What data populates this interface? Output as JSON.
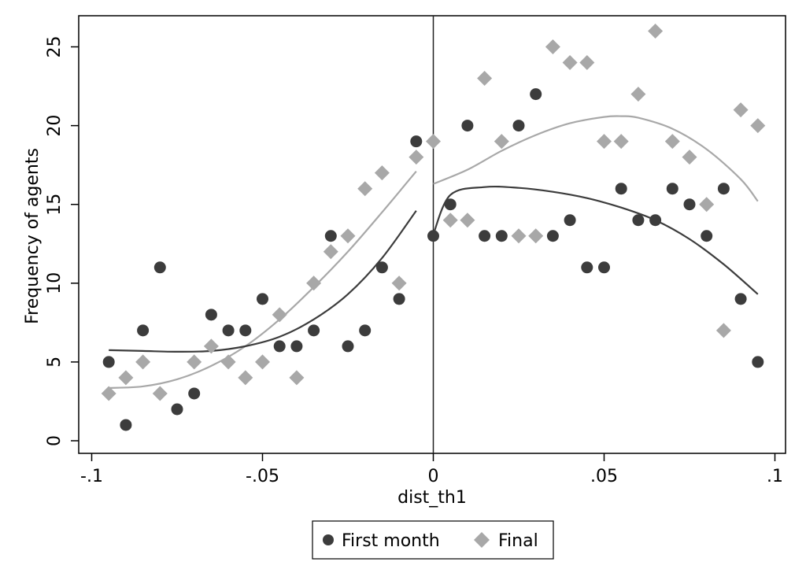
{
  "chart_data": {
    "type": "scatter",
    "title": "",
    "xlabel": "dist_th1",
    "ylabel": "Frequency of agents",
    "xlim": [
      -0.1,
      0.1
    ],
    "ylim": [
      0,
      26
    ],
    "xticks": [
      {
        "value": -0.1,
        "label": "-.1"
      },
      {
        "value": -0.05,
        "label": "-.05"
      },
      {
        "value": 0,
        "label": "0"
      },
      {
        "value": 0.05,
        "label": ".05"
      },
      {
        "value": 0.1,
        "label": ".1"
      }
    ],
    "yticks": [
      {
        "value": 0,
        "label": "0"
      },
      {
        "value": 5,
        "label": "5"
      },
      {
        "value": 10,
        "label": "10"
      },
      {
        "value": 15,
        "label": "15"
      },
      {
        "value": 20,
        "label": "20"
      },
      {
        "value": 25,
        "label": "25"
      }
    ],
    "threshold_x": 0,
    "grid": false,
    "legend_position": "bottom",
    "series": [
      {
        "name": "First month",
        "marker": "circle",
        "color": "#3c3c3c",
        "x": [
          -0.095,
          -0.09,
          -0.085,
          -0.08,
          -0.075,
          -0.07,
          -0.065,
          -0.06,
          -0.055,
          -0.05,
          -0.045,
          -0.04,
          -0.035,
          -0.03,
          -0.025,
          -0.02,
          -0.015,
          -0.01,
          -0.005,
          0,
          0.005,
          0.01,
          0.015,
          0.02,
          0.025,
          0.03,
          0.035,
          0.04,
          0.045,
          0.05,
          0.055,
          0.06,
          0.065,
          0.07,
          0.075,
          0.08,
          0.085,
          0.09,
          0.095
        ],
        "y": [
          5,
          1,
          7,
          11,
          2,
          3,
          8,
          7,
          7,
          9,
          6,
          6,
          7,
          13,
          6,
          7,
          11,
          9,
          19,
          13,
          15,
          20,
          13,
          13,
          20,
          22,
          13,
          14,
          11,
          11,
          16,
          14,
          14,
          16,
          15,
          13,
          16,
          9,
          5
        ],
        "fit_left": {
          "x": [
            -0.095,
            -0.085,
            -0.075,
            -0.065,
            -0.055,
            -0.045,
            -0.035,
            -0.025,
            -0.015,
            -0.005
          ],
          "y": [
            5.75,
            5.7,
            5.65,
            5.7,
            6.0,
            6.6,
            7.7,
            9.3,
            11.6,
            14.6
          ]
        },
        "fit_right": {
          "x": [
            0,
            0.005,
            0.015,
            0.025,
            0.035,
            0.045,
            0.055,
            0.065,
            0.075,
            0.085,
            0.095
          ],
          "y": [
            13.1,
            15.6,
            16.1,
            16.05,
            15.8,
            15.4,
            14.8,
            14.0,
            12.8,
            11.2,
            9.3
          ]
        }
      },
      {
        "name": "Final",
        "marker": "diamond",
        "color": "#a8a8a8",
        "x": [
          -0.095,
          -0.09,
          -0.085,
          -0.08,
          -0.07,
          -0.065,
          -0.06,
          -0.055,
          -0.05,
          -0.045,
          -0.04,
          -0.035,
          -0.03,
          -0.025,
          -0.02,
          -0.015,
          -0.01,
          -0.005,
          0,
          0.005,
          0.01,
          0.015,
          0.02,
          0.025,
          0.03,
          0.035,
          0.04,
          0.045,
          0.05,
          0.055,
          0.06,
          0.065,
          0.07,
          0.075,
          0.08,
          0.085,
          0.09,
          0.095
        ],
        "y": [
          3,
          4,
          5,
          3,
          5,
          6,
          5,
          4,
          5,
          8,
          4,
          10,
          12,
          13,
          16,
          17,
          10,
          18,
          19,
          14,
          14,
          23,
          19,
          13,
          13,
          25,
          24,
          24,
          19,
          19,
          22,
          26,
          19,
          18,
          15,
          7,
          21,
          20
        ],
        "fit_left": {
          "x": [
            -0.095,
            -0.085,
            -0.075,
            -0.065,
            -0.055,
            -0.045,
            -0.035,
            -0.025,
            -0.015,
            -0.005
          ],
          "y": [
            3.35,
            3.45,
            3.9,
            4.75,
            6.0,
            7.7,
            9.75,
            12.0,
            14.5,
            17.1
          ]
        },
        "fit_right": {
          "x": [
            0,
            0.01,
            0.02,
            0.03,
            0.04,
            0.05,
            0.055,
            0.06,
            0.07,
            0.08,
            0.09,
            0.095
          ],
          "y": [
            16.3,
            17.2,
            18.4,
            19.4,
            20.15,
            20.55,
            20.6,
            20.5,
            19.8,
            18.5,
            16.6,
            15.2
          ]
        }
      }
    ]
  }
}
